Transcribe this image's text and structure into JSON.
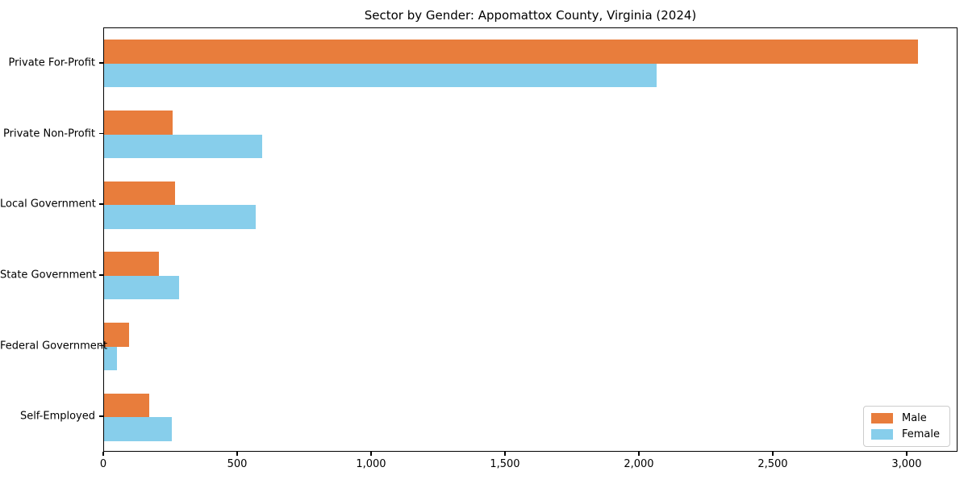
{
  "figure": {
    "title": "Sector by Gender: Appomattox County, Virginia (2024)",
    "background_color": "#ffffff",
    "axis_color": "#000000"
  },
  "legend": {
    "position": "lower right",
    "entries": [
      {
        "label": "Male",
        "color": "#e87d3c"
      },
      {
        "label": "Female",
        "color": "#87ceeb"
      }
    ]
  },
  "chart_data": {
    "type": "bar",
    "orientation": "horizontal",
    "title": "Sector by Gender: Appomattox County, Virginia (2024)",
    "categories": [
      "Private For-Profit",
      "Private Non-Profit",
      "Local Government",
      "State Government",
      "Federal Government",
      "Self-Employed"
    ],
    "series": [
      {
        "name": "Male",
        "color": "#e87d3c",
        "values": [
          3038,
          255,
          264,
          205,
          94,
          168
        ]
      },
      {
        "name": "Female",
        "color": "#87ceeb",
        "values": [
          2062,
          590,
          566,
          281,
          49,
          254
        ]
      }
    ],
    "xlabel": "",
    "ylabel": "",
    "xlim": [
      0,
      3190
    ],
    "xticks": [
      0,
      500,
      1000,
      1500,
      2000,
      2500,
      3000
    ],
    "xtick_labels": [
      "0",
      "500",
      "1,000",
      "1,500",
      "2,000",
      "2,500",
      "3,000"
    ],
    "grid": false,
    "legend_position": "lower right",
    "bar_group_order": "male-above-female"
  }
}
